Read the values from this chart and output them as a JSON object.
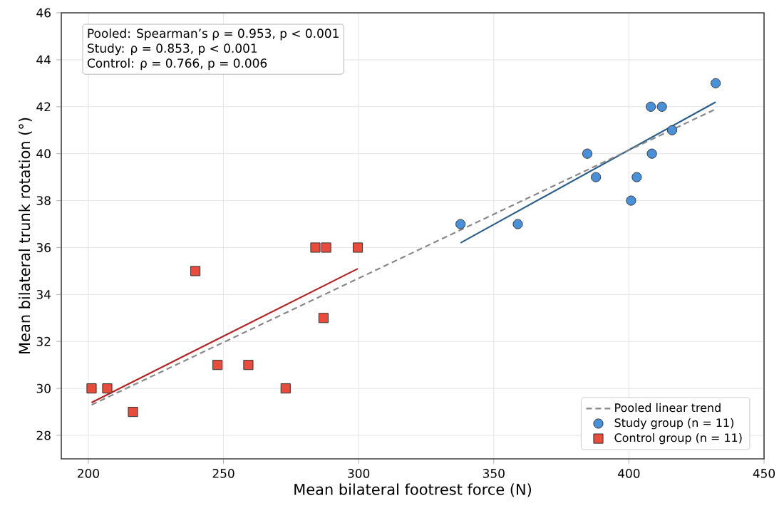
{
  "chart_data": {
    "type": "scatter",
    "xlabel": "Mean bilateral footrest force (N)",
    "ylabel": "Mean bilateral trunk rotation (°)",
    "xlim": [
      190,
      450
    ],
    "ylim": [
      27,
      46
    ],
    "xticks": [
      200,
      250,
      300,
      350,
      400,
      450
    ],
    "yticks": [
      28,
      30,
      32,
      34,
      36,
      38,
      40,
      42,
      44,
      46
    ],
    "grid": true,
    "legend": "bottom right",
    "annotations": [
      "Pooled: Spearman’s ρ = 0.953, p < 0.001",
      "Study: ρ = 0.853, p < 0.001",
      "Control: ρ = 0.766, p = 0.006"
    ],
    "series": [
      {
        "type": "line",
        "color": "#2c5f8a",
        "marker": "none",
        "line_style": "solid",
        "x": [
          337.7,
          432.1
        ],
        "values": [
          36.2,
          42.2
        ]
      },
      {
        "type": "line",
        "color": "#b22222",
        "marker": "none",
        "line_style": "solid",
        "x": [
          201.2,
          299.7
        ],
        "values": [
          29.4,
          35.1
        ]
      },
      {
        "type": "line",
        "name": "Pooled linear trend",
        "color": "#888888",
        "marker": "none",
        "line_style": "dashed",
        "x": [
          201.2,
          432.1
        ],
        "values": [
          29.3,
          41.9
        ]
      },
      {
        "name": "Study group (n = 11)",
        "color": "#4a90d9",
        "marker": "circle",
        "x": [
          337.7,
          358.9,
          384.6,
          387.8,
          400.8,
          402.9,
          408.1,
          408.5,
          412.2,
          416.0,
          432.1
        ],
        "values": [
          37,
          37,
          40,
          39,
          38,
          39,
          42,
          40,
          42,
          41,
          43
        ]
      },
      {
        "name": "Control group (n = 11)",
        "color": "#e74c3c",
        "marker": "square",
        "x": [
          201.2,
          207.0,
          216.5,
          239.6,
          247.8,
          259.2,
          273.0,
          284.0,
          288.0,
          287.0,
          299.7
        ],
        "values": [
          30,
          30,
          29,
          35,
          31,
          31,
          30,
          36,
          36,
          33,
          36
        ]
      }
    ]
  }
}
